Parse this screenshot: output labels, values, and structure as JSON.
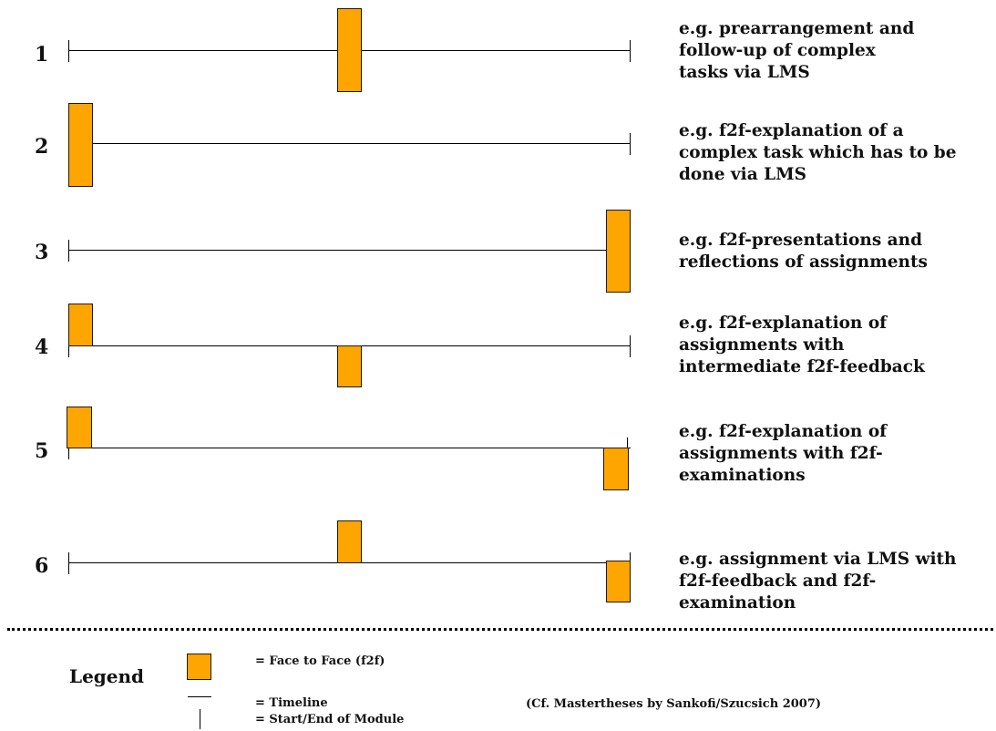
{
  "rows": [
    {
      "number": "1",
      "description": [
        "e.g. prearrangement and",
        "follow-up of complex",
        "tasks via LMS"
      ]
    },
    {
      "number": "2",
      "description": [
        "e.g. f2f-explanation of a",
        "complex task which has to be",
        "done via LMS"
      ]
    },
    {
      "number": "3",
      "description": [
        "e.g. f2f-presentations and",
        "reflections of assignments"
      ]
    },
    {
      "number": "4",
      "description": [
        "e.g. f2f-explanation of",
        "assignments with",
        "intermediate f2f-feedback"
      ]
    },
    {
      "number": "5",
      "description": [
        "e.g. f2f-explanation of",
        "assignments with f2f-",
        "examinations"
      ]
    },
    {
      "number": "6",
      "description": [
        "e.g. assignment via LMS with",
        "f2f-feedback and f2f-",
        "examination"
      ]
    }
  ],
  "legend": {
    "title": "Legend",
    "f2f_label": "= Face to Face (f2f)",
    "timeline_label": "= Timeline",
    "start_end_label": "= Start/End of Module"
  },
  "citation": "(Cf. Mastertheses by Sankofi/Szucsich 2007)",
  "colors": {
    "f2f_box": "#FFA500",
    "line": "#000000"
  }
}
